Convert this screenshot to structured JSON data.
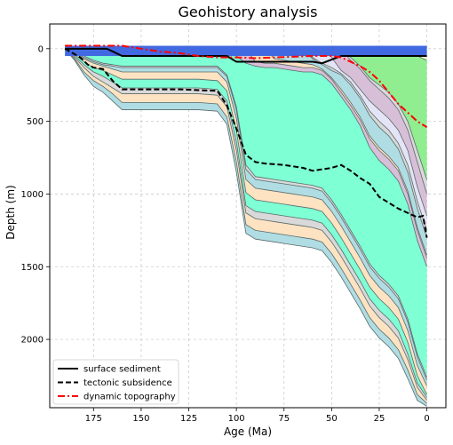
{
  "chart_data": {
    "type": "area",
    "title": "Geohistory analysis",
    "xlabel": "Age (Ma)",
    "ylabel": "Depth (m)",
    "xlim": [
      198,
      -10
    ],
    "ylim": [
      2470,
      -170
    ],
    "x_ticks": [
      175,
      150,
      125,
      100,
      75,
      50,
      25,
      0
    ],
    "y_ticks": [
      0,
      500,
      1000,
      1500,
      2000
    ],
    "grid": true,
    "legend_position": "lower left",
    "colors": {
      "sea": "#4169e1",
      "teal": "#b0dde3",
      "wheat": "#fde3c2",
      "aquamarine": "#7fffd4",
      "lavender": "#e4e4f6",
      "lemon": "#fff8cc",
      "green": "#90ee90",
      "thistle": "#d8bfd8",
      "gray": "#d9d9d9",
      "edge": "#5a6a6a"
    },
    "surface_sediment": {
      "name": "surface sediment",
      "color": "#000000",
      "x": [
        190,
        175,
        168,
        160,
        105,
        100,
        60,
        55,
        45,
        40,
        0
      ],
      "y": [
        0,
        0,
        0,
        50,
        50,
        90,
        90,
        100,
        50,
        50,
        50
      ]
    },
    "tectonic_subsidence": {
      "name": "tectonic subsidence",
      "color": "#000000",
      "x": [
        190,
        182,
        178,
        175,
        170,
        165,
        160,
        150,
        140,
        130,
        120,
        110,
        105,
        100,
        95,
        90,
        85,
        75,
        65,
        60,
        55,
        50,
        45,
        40,
        35,
        30,
        25,
        20,
        15,
        10,
        5,
        2,
        0
      ],
      "y": [
        0,
        60,
        110,
        130,
        140,
        220,
        280,
        280,
        280,
        280,
        285,
        290,
        390,
        550,
        730,
        780,
        790,
        800,
        820,
        840,
        830,
        820,
        800,
        840,
        890,
        930,
        1020,
        1060,
        1100,
        1130,
        1160,
        1150,
        1300
      ]
    },
    "dynamic_topography": {
      "name": "dynamic topography",
      "color": "#ff0000",
      "x": [
        190,
        170,
        160,
        150,
        140,
        130,
        120,
        110,
        100,
        90,
        80,
        70,
        60,
        50,
        45,
        40,
        35,
        30,
        25,
        20,
        15,
        10,
        5,
        0
      ],
      "y": [
        -20,
        -20,
        -20,
        0,
        20,
        30,
        50,
        60,
        60,
        65,
        60,
        55,
        50,
        50,
        60,
        90,
        120,
        160,
        220,
        300,
        380,
        440,
        500,
        540
      ]
    },
    "layer_boundaries": {
      "x": [
        190,
        185,
        180,
        175,
        170,
        165,
        160,
        150,
        140,
        130,
        120,
        110,
        105,
        100,
        95,
        90,
        85,
        80,
        75,
        70,
        65,
        60,
        55,
        50,
        45,
        40,
        35,
        30,
        25,
        20,
        15,
        10,
        5,
        0
      ],
      "depths": [
        [
          0,
          0,
          0,
          0,
          0,
          0,
          0,
          0,
          0,
          0,
          0,
          0,
          0,
          0,
          0,
          0,
          0,
          0,
          0,
          0,
          0,
          0,
          0,
          0,
          0,
          0,
          0,
          0,
          0,
          0,
          0,
          0,
          0,
          0
        ],
        [
          0,
          0,
          0,
          0,
          0,
          0,
          0,
          0,
          0,
          0,
          0,
          0,
          0,
          0,
          0,
          0,
          0,
          0,
          0,
          0,
          0,
          0,
          0,
          0,
          0,
          0,
          0,
          0,
          0,
          0,
          10,
          30,
          50,
          80
        ],
        [
          0,
          0,
          0,
          0,
          0,
          0,
          0,
          0,
          0,
          0,
          0,
          0,
          0,
          0,
          0,
          0,
          0,
          0,
          0,
          0,
          0,
          0,
          0,
          0,
          0,
          60,
          120,
          200,
          250,
          300,
          380,
          500,
          700,
          900
        ],
        [
          0,
          0,
          0,
          0,
          0,
          0,
          0,
          0,
          0,
          0,
          0,
          0,
          0,
          0,
          0,
          0,
          0,
          0,
          0,
          0,
          0,
          0,
          0,
          0,
          0,
          80,
          140,
          220,
          280,
          340,
          420,
          560,
          780,
          1000
        ],
        [
          0,
          0,
          0,
          0,
          0,
          0,
          0,
          0,
          0,
          0,
          0,
          0,
          0,
          0,
          0,
          0,
          0,
          0,
          0,
          0,
          0,
          0,
          0,
          60,
          150,
          200,
          280,
          360,
          420,
          480,
          560,
          700,
          950,
          1150
        ],
        [
          0,
          0,
          0,
          0,
          0,
          0,
          0,
          0,
          0,
          0,
          0,
          0,
          0,
          0,
          0,
          0,
          0,
          0,
          0,
          0,
          0,
          60,
          100,
          130,
          170,
          230,
          320,
          430,
          500,
          560,
          650,
          800,
          1050,
          1250
        ],
        [
          0,
          0,
          0,
          0,
          0,
          0,
          0,
          0,
          0,
          0,
          0,
          0,
          0,
          0,
          0,
          0,
          0,
          0,
          0,
          0,
          0,
          70,
          110,
          150,
          180,
          250,
          340,
          460,
          540,
          600,
          690,
          850,
          1100,
          1300
        ],
        [
          0,
          0,
          0,
          0,
          0,
          0,
          0,
          0,
          0,
          0,
          0,
          0,
          0,
          0,
          0,
          0,
          0,
          70,
          80,
          90,
          100,
          110,
          140,
          200,
          280,
          370,
          470,
          600,
          680,
          740,
          820,
          980,
          1230,
          1420
        ],
        [
          0,
          0,
          0,
          0,
          0,
          0,
          0,
          0,
          0,
          0,
          0,
          0,
          0,
          0,
          0,
          90,
          100,
          100,
          110,
          120,
          130,
          130,
          150,
          210,
          300,
          390,
          490,
          620,
          700,
          760,
          840,
          1000,
          1250,
          1440
        ],
        [
          0,
          0,
          0,
          0,
          0,
          0,
          0,
          0,
          0,
          0,
          0,
          0,
          0,
          50,
          100,
          120,
          130,
          130,
          140,
          150,
          160,
          160,
          180,
          240,
          330,
          420,
          530,
          680,
          770,
          830,
          910,
          1070,
          1320,
          1500
        ],
        [
          0,
          20,
          50,
          80,
          100,
          110,
          120,
          120,
          120,
          120,
          120,
          120,
          180,
          400,
          800,
          880,
          890,
          900,
          910,
          920,
          930,
          940,
          960,
          1040,
          1140,
          1250,
          1360,
          1480,
          1560,
          1620,
          1700,
          1860,
          2100,
          2260
        ],
        [
          0,
          25,
          60,
          90,
          110,
          120,
          130,
          130,
          130,
          130,
          130,
          130,
          190,
          420,
          830,
          900,
          910,
          920,
          930,
          940,
          950,
          960,
          980,
          1060,
          1160,
          1270,
          1380,
          1500,
          1580,
          1640,
          1720,
          1880,
          2120,
          2280
        ],
        [
          0,
          30,
          70,
          100,
          120,
          140,
          160,
          160,
          160,
          160,
          160,
          160,
          230,
          480,
          900,
          960,
          970,
          980,
          990,
          1000,
          1010,
          1020,
          1040,
          1120,
          1220,
          1330,
          1440,
          1560,
          1640,
          1700,
          1780,
          1940,
          2180,
          2320
        ],
        [
          0,
          40,
          90,
          130,
          150,
          180,
          210,
          210,
          210,
          210,
          210,
          220,
          290,
          560,
          990,
          1040,
          1050,
          1060,
          1070,
          1080,
          1090,
          1100,
          1120,
          1200,
          1300,
          1410,
          1520,
          1640,
          1720,
          1780,
          1860,
          2020,
          2250,
          2380
        ],
        [
          0,
          50,
          110,
          160,
          190,
          230,
          270,
          270,
          270,
          270,
          270,
          280,
          360,
          640,
          1080,
          1120,
          1130,
          1140,
          1150,
          1160,
          1170,
          1180,
          1200,
          1280,
          1380,
          1490,
          1600,
          1720,
          1800,
          1860,
          1940,
          2100,
          2300,
          2400
        ],
        [
          0,
          60,
          130,
          190,
          230,
          270,
          310,
          310,
          310,
          310,
          310,
          320,
          400,
          700,
          1130,
          1170,
          1180,
          1190,
          1200,
          1210,
          1220,
          1230,
          1250,
          1330,
          1430,
          1540,
          1650,
          1770,
          1850,
          1910,
          1990,
          2140,
          2330,
          2420
        ],
        [
          0,
          70,
          160,
          220,
          260,
          310,
          370,
          370,
          370,
          370,
          370,
          380,
          470,
          780,
          1210,
          1250,
          1260,
          1270,
          1280,
          1290,
          1300,
          1310,
          1330,
          1410,
          1510,
          1620,
          1730,
          1850,
          1930,
          1990,
          2070,
          2210,
          2380,
          2440
        ],
        [
          0,
          80,
          180,
          260,
          300,
          360,
          420,
          420,
          420,
          420,
          420,
          430,
          520,
          850,
          1270,
          1310,
          1320,
          1330,
          1340,
          1350,
          1360,
          1370,
          1390,
          1470,
          1570,
          1680,
          1790,
          1910,
          1990,
          2050,
          2130,
          2270,
          2420,
          2460
        ]
      ],
      "fills": [
        "lemon",
        "green",
        "gray",
        "thistle",
        "lavender",
        "gray",
        "teal",
        "wheat",
        "thistle",
        "aquamarine",
        "gray",
        "teal",
        "wheat",
        "aquamarine",
        "gray",
        "wheat",
        "teal"
      ]
    },
    "sea_band": {
      "x_start": 190,
      "x_end": 0,
      "top": -20,
      "bottom": 50
    }
  }
}
